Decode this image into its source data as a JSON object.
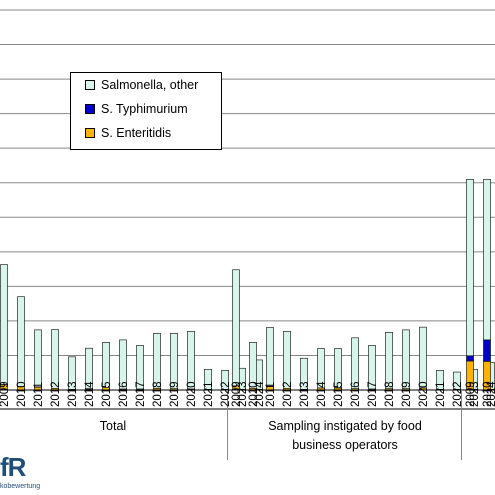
{
  "chart_data": {
    "type": "bar",
    "stacked": true,
    "grid": true,
    "legend_position": "top-left",
    "series": [
      {
        "name": "Salmonella, other",
        "color": "#d8f5ec"
      },
      {
        "name": "S. Typhimurium",
        "color": "#0000cc"
      },
      {
        "name": "S. Enteritidis",
        "color": "#ffb300"
      }
    ],
    "groups": [
      {
        "label": "Total",
        "categories": [
          "2009",
          "2010",
          "2011",
          "2012",
          "2013",
          "2014",
          "2015",
          "2016",
          "2017",
          "2018",
          "2019",
          "2020",
          "2021",
          "2022",
          "2023",
          "2024"
        ],
        "enteritidis": [
          0.15,
          0.1,
          0.08,
          0.05,
          0.02,
          0.03,
          0.07,
          0.03,
          0.03,
          0.05,
          0.04,
          0.03,
          0.02,
          0.02,
          0.02,
          0.02
        ],
        "typhimurium": [
          0.01,
          0.0,
          0.01,
          0.0,
          0.0,
          0.01,
          0.0,
          0.0,
          0.0,
          0.0,
          0.0,
          0.0,
          0.0,
          0.0,
          0.0,
          0.0
        ],
        "other": [
          3.47,
          2.6,
          1.65,
          1.7,
          0.94,
          1.17,
          1.31,
          1.42,
          1.26,
          1.59,
          1.6,
          1.67,
          0.58,
          0.55,
          0.61,
          0.85
        ]
      },
      {
        "label": "Sampling instigated by food business operators",
        "categories": [
          "2009",
          "2010",
          "2011",
          "2012",
          "2013",
          "2014",
          "2015",
          "2016",
          "2017",
          "2018",
          "2019",
          "2020",
          "2021",
          "2022",
          "2023",
          "2024"
        ],
        "enteritidis": [
          0.12,
          0.05,
          0.1,
          0.05,
          0.02,
          0.06,
          0.06,
          0.04,
          0.03,
          0.04,
          0.04,
          0.06,
          0.02,
          0.02,
          0.02,
          0.02
        ],
        "typhimurium": [
          0.0,
          0.0,
          0.01,
          0.0,
          0.0,
          0.0,
          0.01,
          0.0,
          0.0,
          0.0,
          0.0,
          0.0,
          0.0,
          0.0,
          0.0,
          0.0
        ],
        "other": [
          3.36,
          1.33,
          1.7,
          1.65,
          0.9,
          1.14,
          1.13,
          1.47,
          1.26,
          1.63,
          1.7,
          1.76,
          0.55,
          0.5,
          0.58,
          0.78
        ]
      },
      {
        "label": "",
        "categories": [
          "2009",
          "2010"
        ],
        "enteritidis": [
          0.84,
          0.83
        ],
        "typhimurium": [
          0.15,
          0.62
        ],
        "other": [
          5.11,
          4.65
        ]
      }
    ],
    "ylim": [
      0,
      11.0
    ],
    "gridlines": [
      1,
      2,
      3,
      4,
      5,
      6,
      7,
      8,
      9,
      10,
      11
    ]
  },
  "logo": {
    "text": "fR",
    "subtext": "kobewertung"
  }
}
